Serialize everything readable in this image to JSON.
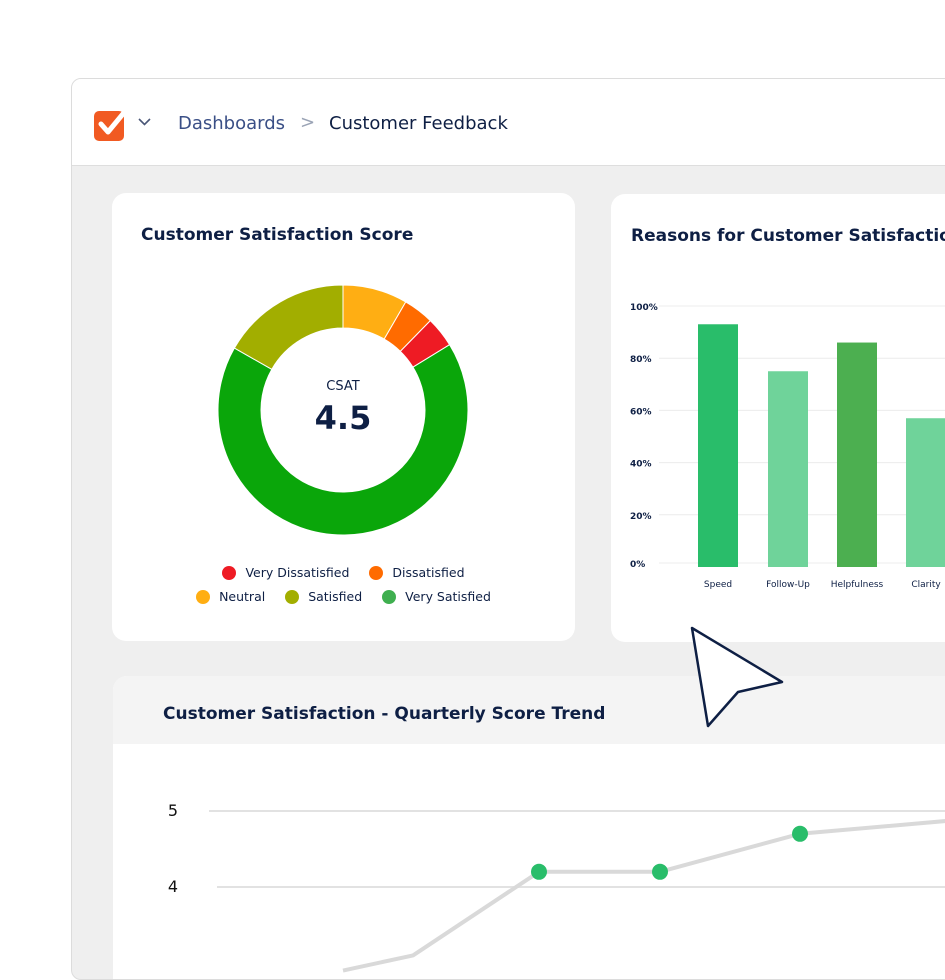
{
  "breadcrumb": {
    "parent": "Dashboards",
    "separator": ">",
    "current": "Customer Feedback"
  },
  "icons": {
    "logo": "checkmark-logo-icon",
    "menu": "chevron-down-icon",
    "pointer": "mouse-cursor-icon"
  },
  "colors": {
    "brand": "#f15a22",
    "very_dissatisfied": "#ee1b24",
    "dissatisfied": "#ff6b00",
    "neutral": "#ffae13",
    "satisfied": "#a2ae00",
    "very_satisfied": "#0aa60a",
    "very_satisfied_legend": "#3faf4f"
  },
  "csat_card": {
    "title": "Customer Satisfaction Score",
    "center_label": "CSAT",
    "center_value": "4.5"
  },
  "reasons_card": {
    "title": "Reasons for Customer Satisfaction"
  },
  "trend_card": {
    "title": "Customer Satisfaction - Quarterly Score Trend"
  },
  "chart_data": [
    {
      "type": "pie",
      "title": "Customer Satisfaction Score",
      "categories": [
        "Very Satisfied",
        "Satisfied",
        "Neutral",
        "Dissatisfied",
        "Very Dissatisfied"
      ],
      "values": [
        68,
        17,
        8.5,
        4,
        4
      ],
      "colors": [
        "#0aa60a",
        "#a2ae00",
        "#ffae13",
        "#ff6b00",
        "#ee1b24"
      ],
      "legend": [
        {
          "label": "Very Dissatisfied",
          "color": "#ee1b24"
        },
        {
          "label": "Dissatisfied",
          "color": "#ff6b00"
        },
        {
          "label": "Neutral",
          "color": "#ffae13"
        },
        {
          "label": "Satisfied",
          "color": "#a2ae00"
        },
        {
          "label": "Very Satisfied",
          "color": "#3faf4f"
        }
      ],
      "legend_placement": "bottom"
    },
    {
      "type": "bar",
      "title": "Reasons for Customer Satisfaction",
      "categories": [
        "Speed",
        "Follow-Up",
        "Helpfulness",
        "Clarity"
      ],
      "values": [
        93,
        75,
        86,
        57
      ],
      "colors": [
        "#29bd6a",
        "#6fd39a",
        "#4caf50",
        "#6fd39a"
      ],
      "yticks": [
        "0%",
        "20%",
        "40%",
        "60%",
        "80%",
        "100%"
      ],
      "ylim": [
        0,
        100
      ],
      "grid": true
    },
    {
      "type": "line",
      "title": "Customer Satisfaction - Quarterly Score Trend",
      "x": [
        1,
        2,
        3,
        4,
        5
      ],
      "values": [
        3.1,
        4.2,
        4.2,
        4.7,
        4.9
      ],
      "yticks": [
        "4",
        "5"
      ],
      "ylim": [
        3,
        5
      ],
      "grid": true
    }
  ]
}
